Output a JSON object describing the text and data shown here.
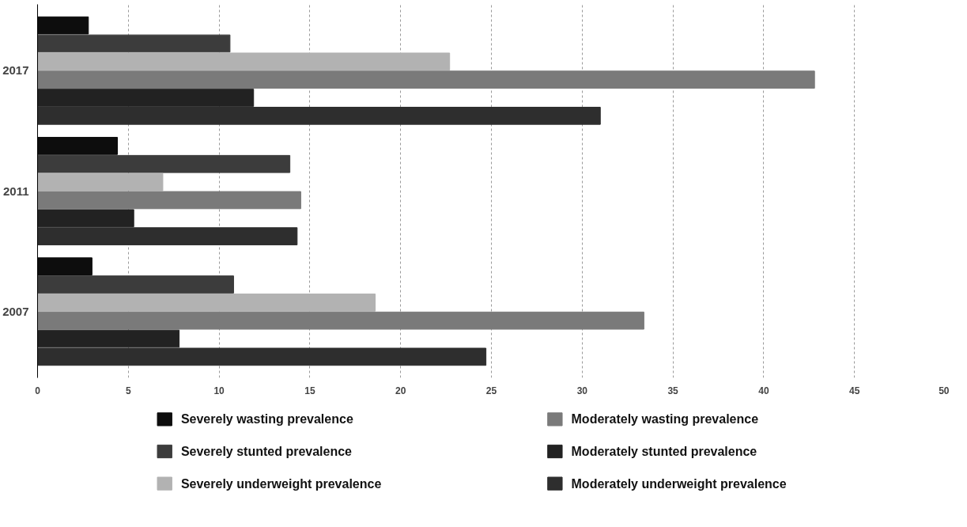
{
  "chart_data": {
    "type": "bar",
    "orientation": "horizontal",
    "categories": [
      "2017",
      "2011",
      "2007"
    ],
    "series": [
      {
        "name": "Severely wasting prevalence",
        "color": "#0d0d0d",
        "values": [
          2.8,
          4.4,
          3.0
        ]
      },
      {
        "name": "Severely stunted prevalence",
        "color": "#3c3c3c",
        "values": [
          10.6,
          13.9,
          10.8
        ]
      },
      {
        "name": "Severely underweight prevalence",
        "color": "#b2b2b2",
        "values": [
          22.7,
          6.9,
          18.6
        ]
      },
      {
        "name": "Moderately wasting prevalence",
        "color": "#7a7a7a",
        "values": [
          42.8,
          14.5,
          33.4
        ]
      },
      {
        "name": "Moderately stunted prevalence",
        "color": "#222222",
        "values": [
          11.9,
          5.3,
          7.8
        ]
      },
      {
        "name": "Moderately underweight prevalence",
        "color": "#2e2e2e",
        "values": [
          31.0,
          14.3,
          24.7
        ]
      }
    ],
    "xlim": [
      0,
      50
    ],
    "xticks": [
      0,
      5,
      10,
      15,
      20,
      25,
      30,
      35,
      40,
      45,
      50
    ],
    "grid": "x",
    "legend": "bottom"
  }
}
